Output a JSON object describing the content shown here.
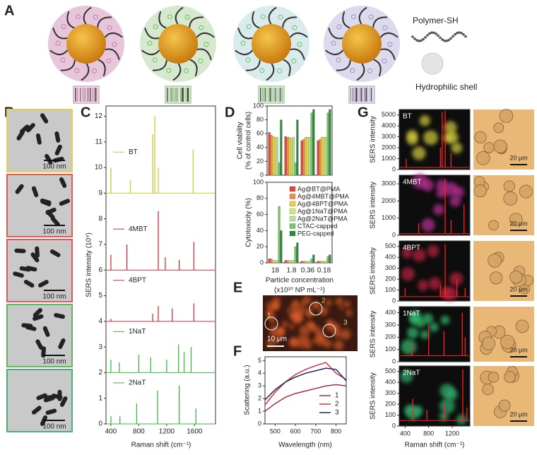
{
  "panel_labels": [
    "A",
    "B",
    "C",
    "D",
    "E",
    "F",
    "G"
  ],
  "panel_a": {
    "legend": {
      "polymer": "Polymer-SH",
      "shell": "Hydrophilic shell"
    }
  },
  "panel_b": {
    "scale_bars": [
      "100 nm",
      "100 nm",
      "100 nm",
      "100 nm",
      "100 nm"
    ]
  },
  "panel_e": {
    "regions": [
      "1",
      "2",
      "3"
    ],
    "scale_bar": "10 μm"
  },
  "chart_data": [
    {
      "type": "stick-spectra",
      "ylabel": "SERS intensity (10⁴)",
      "xlabel": "Raman shift (cm⁻¹)",
      "xlim": [
        330,
        1900
      ],
      "xticks": [
        400,
        800,
        1200,
        1600
      ],
      "ylim": [
        0,
        12.4
      ],
      "yticks": [
        0,
        1,
        2,
        3,
        4,
        5,
        6,
        7,
        8,
        9,
        10,
        11,
        12
      ],
      "series": [
        {
          "name": "BT",
          "color": "#c9c93c",
          "baseline": 9,
          "x": [
            400,
            680,
            1000,
            1030,
            1080,
            1580
          ],
          "values": [
            10,
            9.5,
            11.3,
            12,
            10,
            10.7
          ]
        },
        {
          "name": "4MBT",
          "color": "#d2303a",
          "baseline": 6,
          "x": [
            400,
            630,
            1080,
            1180,
            1380,
            1590
          ],
          "values": [
            6.6,
            7,
            8.3,
            6.5,
            6.4,
            7.1
          ]
        },
        {
          "name": "4BPT",
          "color": "#d2303a",
          "baseline": 4,
          "x": [
            400,
            1000,
            1080,
            1280,
            1590
          ],
          "values": [
            4.1,
            4.3,
            4.6,
            4.5,
            4.7
          ]
        },
        {
          "name": "1NaT",
          "color": "#3fb83f",
          "baseline": 2,
          "x": [
            400,
            520,
            800,
            970,
            1200,
            1370,
            1450,
            1550
          ],
          "values": [
            2.5,
            2.4,
            2.7,
            2.6,
            2.5,
            3.1,
            2.8,
            3
          ]
        },
        {
          "name": "2NaT",
          "color": "#3fb83f",
          "baseline": 0,
          "x": [
            400,
            530,
            770,
            1070,
            1380,
            1620
          ],
          "values": [
            0.3,
            0.3,
            0.8,
            1.3,
            1.5,
            0.6
          ]
        }
      ]
    },
    {
      "type": "bar",
      "ylabel": [
        "Cell viability",
        "(% of control cells)"
      ],
      "ylim": [
        0,
        100
      ],
      "yticks": [
        0,
        20,
        40,
        60,
        80,
        100
      ],
      "series": [
        {
          "color": "#e0463c",
          "values": [
            62,
            56,
            50,
            50
          ]
        },
        {
          "color": "#f08a4b",
          "values": [
            58,
            55,
            52,
            52
          ]
        },
        {
          "color": "#f3d13a",
          "values": [
            56,
            55,
            55,
            55
          ]
        },
        {
          "color": "#d9e86a",
          "values": [
            55,
            53,
            55,
            55
          ]
        },
        {
          "color": "#b9e39a",
          "values": [
            55,
            55,
            55,
            55
          ]
        },
        {
          "color": "#7cc46a",
          "values": [
            18,
            18,
            90,
            90
          ]
        },
        {
          "color": "#2f8a3c",
          "values": [
            80,
            80,
            95,
            95
          ]
        }
      ]
    },
    {
      "type": "bar",
      "ylabel": "Cytotoxicity (%)",
      "xlabel": "Particle concentration",
      "xlabel_unit": "(x10¹⁰ NP mL⁻¹)",
      "categories": [
        "18",
        "1.8",
        "0.36",
        "0.18"
      ],
      "ylim": [
        0,
        100
      ],
      "yticks": [
        0,
        20,
        40,
        60,
        80,
        100
      ],
      "series": [
        {
          "name": "Ag@BT@PMA",
          "color": "#e0463c",
          "values": [
            5,
            3,
            2,
            2
          ]
        },
        {
          "name": "Ag@4MBT@PMA",
          "color": "#f08a4b",
          "values": [
            5,
            3,
            2,
            2
          ]
        },
        {
          "name": "Ag@4BPT@PMA",
          "color": "#f3d13a",
          "values": [
            3,
            3,
            2,
            2
          ]
        },
        {
          "name": "Ag@1NaT@PMA",
          "color": "#d9e86a",
          "values": [
            3,
            3,
            2,
            2
          ]
        },
        {
          "name": "Ag@2NaT@PMA",
          "color": "#b9e39a",
          "values": [
            3,
            3,
            2,
            2
          ]
        },
        {
          "name": "CTAC-capped",
          "color": "#7cc46a",
          "values": [
            70,
            20,
            5,
            8
          ]
        },
        {
          "name": "PEG-capped",
          "color": "#2f8a3c",
          "values": [
            40,
            25,
            10,
            10
          ]
        }
      ]
    },
    {
      "type": "line",
      "ylabel": "Scattering (a.u.)",
      "xlabel": "Wavelength (nm)",
      "xlim": [
        450,
        850
      ],
      "xticks": [
        500,
        600,
        700,
        800
      ],
      "ylim": [
        0,
        5.3
      ],
      "yticks": [
        0,
        1,
        2,
        3,
        4,
        5
      ],
      "x": [
        450,
        500,
        550,
        600,
        650,
        700,
        750,
        800,
        850
      ],
      "series": [
        {
          "name": "1",
          "color": "#a0304a",
          "values": [
            1,
            1.6,
            2.1,
            2.4,
            2.6,
            2.8,
            3,
            3.1,
            3
          ]
        },
        {
          "name": "2",
          "color": "#d83040",
          "values": [
            1.5,
            2.5,
            3.3,
            3.9,
            4.3,
            4.6,
            4.85,
            4,
            3.5
          ]
        },
        {
          "name": "3",
          "color": "#1e2a60",
          "values": [
            1.9,
            2.7,
            3.3,
            3.7,
            4,
            4.2,
            4.4,
            4.3,
            3.4
          ]
        }
      ]
    },
    {
      "type": "stick-spectra",
      "ylabel": "SERS intensity",
      "xlim": [
        300,
        1500
      ],
      "ylim": [
        0,
        5500
      ],
      "yticks": [
        0,
        1000,
        2000,
        3000,
        4000,
        5000
      ],
      "glow": "#d8d040",
      "scale_bar": "20 μm",
      "series": [
        {
          "name": "BT",
          "color": "#ff2020",
          "baseline": 200,
          "x": [
            420,
            1000,
            1030,
            1080,
            1180
          ],
          "values": [
            1000,
            2000,
            5300,
            5400,
            1500
          ]
        }
      ]
    },
    {
      "type": "stick-spectra",
      "ylabel": "SERS intensity",
      "xlim": [
        300,
        1500
      ],
      "ylim": [
        0,
        3500
      ],
      "yticks": [
        0,
        1000,
        2000,
        3000
      ],
      "glow": "#c0309a",
      "scale_bar": "20 μm",
      "series": [
        {
          "name": "4MBT",
          "color": "#ff2020",
          "baseline": 100,
          "x": [
            630,
            1080,
            1180,
            1400
          ],
          "values": [
            700,
            3300,
            900,
            1800
          ]
        }
      ]
    },
    {
      "type": "stick-spectra",
      "ylabel": "SERS intensity",
      "xlim": [
        300,
        1500
      ],
      "ylim": [
        0,
        550
      ],
      "yticks": [
        0,
        100,
        200,
        300,
        400,
        500
      ],
      "glow": "#c02040",
      "scale_bar": "20 μm",
      "series": [
        {
          "name": "4BPT",
          "color": "#ff2020",
          "baseline": 40,
          "x": [
            400,
            1000,
            1080,
            1280,
            1420
          ],
          "values": [
            120,
            150,
            520,
            200,
            120
          ]
        }
      ]
    },
    {
      "type": "stick-spectra",
      "ylabel": "SERS intensity",
      "xlim": [
        300,
        1500
      ],
      "ylim": [
        0,
        450
      ],
      "yticks": [
        0,
        100,
        200,
        300,
        400
      ],
      "glow": "#30c070",
      "scale_bar": "20 μm",
      "series": [
        {
          "name": "1NaT",
          "color": "#ff2020",
          "baseline": 50,
          "x": [
            520,
            800,
            1060,
            1370,
            1420
          ],
          "values": [
            150,
            300,
            250,
            400,
            200
          ]
        }
      ]
    },
    {
      "type": "stick-spectra",
      "ylabel": "SERS intensity",
      "xlabel": "Raman shift (cm⁻¹)",
      "xlim": [
        300,
        1500
      ],
      "xticks": [
        400,
        800,
        1200
      ],
      "ylim": [
        0,
        550
      ],
      "yticks": [
        0,
        100,
        200,
        300,
        400,
        500
      ],
      "glow": "#30b070",
      "scale_bar": "20 μm",
      "series": [
        {
          "name": "2NaT",
          "color": "#ff2020",
          "baseline": 50,
          "x": [
            530,
            770,
            1070,
            1380,
            1450
          ],
          "values": [
            250,
            150,
            200,
            520,
            170
          ]
        }
      ]
    }
  ]
}
